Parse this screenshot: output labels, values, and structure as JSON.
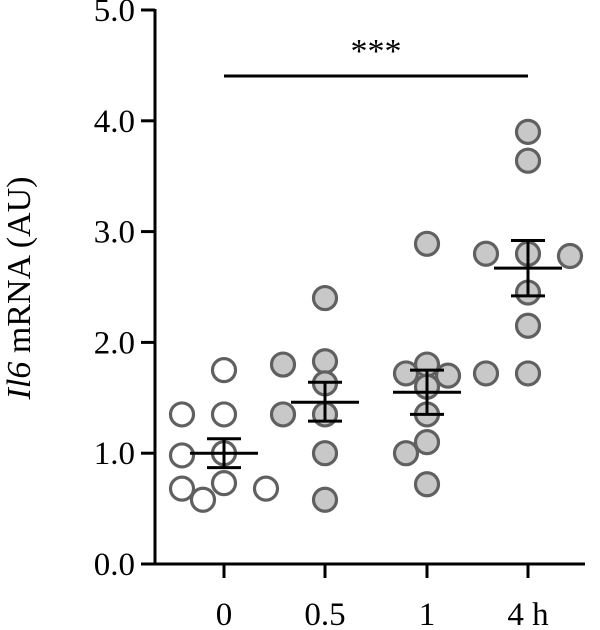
{
  "chart_data": {
    "type": "scatter",
    "ylabel_italic": "Il6",
    "ylabel_rest": " mRNA (AU)",
    "ylim": [
      0,
      5
    ],
    "yticks": [
      0,
      1,
      2,
      3,
      4,
      5
    ],
    "ytick_labels": [
      "0.0",
      "1.0",
      "2.0",
      "3.0",
      "4.0",
      "5.0"
    ],
    "categories": [
      "0",
      "0.5",
      "1",
      "4 h"
    ],
    "significance": {
      "label": "***",
      "from": "0",
      "to": "4 h"
    },
    "fill_colors": {
      "0": "#ffffff",
      "0.5": "#c8c8c8",
      "1": "#c8c8c8",
      "4 h": "#c8c8c8"
    },
    "series": [
      {
        "category": "0",
        "mean": 1.0,
        "sem": [
          0.87,
          1.13
        ],
        "values": [
          1.75,
          1.35,
          1.35,
          0.98,
          1.0,
          0.73,
          0.68,
          0.68,
          0.58
        ]
      },
      {
        "category": "0.5",
        "mean": 1.46,
        "sem": [
          1.29,
          1.64
        ],
        "values": [
          2.4,
          1.83,
          1.8,
          1.63,
          1.35,
          1.35,
          1.0,
          0.58
        ]
      },
      {
        "category": "1",
        "mean": 1.55,
        "sem": [
          1.35,
          1.75
        ],
        "values": [
          2.89,
          1.8,
          1.72,
          1.7,
          1.6,
          1.35,
          1.1,
          1.0,
          0.72
        ]
      },
      {
        "category": "4 h",
        "mean": 2.67,
        "sem": [
          2.42,
          2.92
        ],
        "values": [
          3.9,
          3.64,
          2.8,
          2.8,
          2.78,
          2.45,
          2.15,
          1.72,
          1.72
        ]
      }
    ]
  }
}
